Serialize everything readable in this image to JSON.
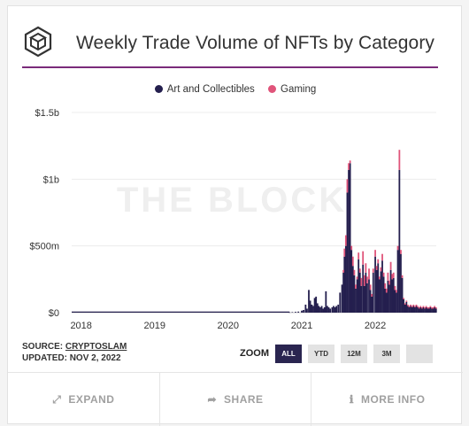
{
  "header": {
    "title": "Weekly Trade Volume of NFTs by Category"
  },
  "watermark": "THE BLOCK",
  "chart_data": {
    "type": "bar",
    "stacked": true,
    "title": "Weekly Trade Volume of NFTs by Category",
    "xlabel": "",
    "ylabel": "",
    "x_tick_labels": [
      "2018",
      "2019",
      "2020",
      "2021",
      "2022"
    ],
    "y_tick_labels": [
      "$0",
      "$500m",
      "$1b",
      "$1.5b"
    ],
    "y_ticks": [
      0,
      0.5,
      1.0,
      1.5
    ],
    "ylim": [
      0,
      1.5
    ],
    "y_unit": "billions USD",
    "grid": true,
    "legend_position": "top-center",
    "period": {
      "start": "2017-11",
      "end": "2022-11"
    },
    "series": [
      {
        "name": "Art and Collectibles",
        "color": "#241f4e",
        "points": [
          [
            "2020-11-01",
            0.003
          ],
          [
            "2020-11-15",
            0.004
          ],
          [
            "2020-12-01",
            0.006
          ],
          [
            "2020-12-15",
            0.008
          ],
          [
            "2021-01-01",
            0.015
          ],
          [
            "2021-01-10",
            0.02
          ],
          [
            "2021-01-20",
            0.06
          ],
          [
            "2021-01-27",
            0.03
          ],
          [
            "2021-02-05",
            0.17
          ],
          [
            "2021-02-12",
            0.09
          ],
          [
            "2021-02-20",
            0.06
          ],
          [
            "2021-02-27",
            0.05
          ],
          [
            "2021-03-06",
            0.11
          ],
          [
            "2021-03-13",
            0.12
          ],
          [
            "2021-03-20",
            0.07
          ],
          [
            "2021-03-27",
            0.05
          ],
          [
            "2021-04-03",
            0.04
          ],
          [
            "2021-04-10",
            0.05
          ],
          [
            "2021-04-17",
            0.03
          ],
          [
            "2021-04-24",
            0.04
          ],
          [
            "2021-05-01",
            0.16
          ],
          [
            "2021-05-08",
            0.05
          ],
          [
            "2021-05-15",
            0.04
          ],
          [
            "2021-05-22",
            0.03
          ],
          [
            "2021-06-01",
            0.04
          ],
          [
            "2021-06-08",
            0.05
          ],
          [
            "2021-06-15",
            0.04
          ],
          [
            "2021-06-22",
            0.05
          ],
          [
            "2021-07-01",
            0.06
          ],
          [
            "2021-07-10",
            0.15
          ],
          [
            "2021-07-20",
            0.21
          ],
          [
            "2021-07-27",
            0.3
          ],
          [
            "2021-08-01",
            0.42
          ],
          [
            "2021-08-08",
            0.5
          ],
          [
            "2021-08-15",
            0.9
          ],
          [
            "2021-08-22",
            1.07
          ],
          [
            "2021-08-29",
            1.12
          ],
          [
            "2021-09-05",
            0.47
          ],
          [
            "2021-09-12",
            0.35
          ],
          [
            "2021-09-19",
            0.28
          ],
          [
            "2021-09-26",
            0.18
          ],
          [
            "2021-10-03",
            0.25
          ],
          [
            "2021-10-10",
            0.4
          ],
          [
            "2021-10-17",
            0.3
          ],
          [
            "2021-10-24",
            0.2
          ],
          [
            "2021-11-01",
            0.36
          ],
          [
            "2021-11-08",
            0.2
          ],
          [
            "2021-11-15",
            0.3
          ],
          [
            "2021-11-22",
            0.22
          ],
          [
            "2021-12-01",
            0.25
          ],
          [
            "2021-12-08",
            0.17
          ],
          [
            "2021-12-15",
            0.12
          ],
          [
            "2021-12-22",
            0.3
          ],
          [
            "2022-01-01",
            0.42
          ],
          [
            "2022-01-08",
            0.32
          ],
          [
            "2022-01-15",
            0.37
          ],
          [
            "2022-01-22",
            0.25
          ],
          [
            "2022-01-29",
            0.31
          ],
          [
            "2022-02-05",
            0.39
          ],
          [
            "2022-02-12",
            0.27
          ],
          [
            "2022-02-19",
            0.18
          ],
          [
            "2022-02-26",
            0.15
          ],
          [
            "2022-03-05",
            0.24
          ],
          [
            "2022-03-12",
            0.21
          ],
          [
            "2022-03-19",
            0.32
          ],
          [
            "2022-03-26",
            0.25
          ],
          [
            "2022-04-02",
            0.26
          ],
          [
            "2022-04-09",
            0.17
          ],
          [
            "2022-04-16",
            0.15
          ],
          [
            "2022-04-23",
            0.47
          ],
          [
            "2022-05-01",
            1.07
          ],
          [
            "2022-05-08",
            0.44
          ],
          [
            "2022-05-15",
            0.26
          ],
          [
            "2022-05-22",
            0.1
          ],
          [
            "2022-05-29",
            0.06
          ],
          [
            "2022-06-05",
            0.08
          ],
          [
            "2022-06-12",
            0.05
          ],
          [
            "2022-06-19",
            0.04
          ],
          [
            "2022-06-26",
            0.05
          ],
          [
            "2022-07-03",
            0.04
          ],
          [
            "2022-07-10",
            0.05
          ],
          [
            "2022-07-17",
            0.04
          ],
          [
            "2022-07-24",
            0.05
          ],
          [
            "2022-07-31",
            0.04
          ],
          [
            "2022-08-07",
            0.03
          ],
          [
            "2022-08-14",
            0.04
          ],
          [
            "2022-08-21",
            0.03
          ],
          [
            "2022-08-28",
            0.04
          ],
          [
            "2022-09-04",
            0.03
          ],
          [
            "2022-09-11",
            0.04
          ],
          [
            "2022-09-18",
            0.03
          ],
          [
            "2022-09-25",
            0.03
          ],
          [
            "2022-10-02",
            0.04
          ],
          [
            "2022-10-09",
            0.03
          ],
          [
            "2022-10-16",
            0.03
          ],
          [
            "2022-10-23",
            0.04
          ],
          [
            "2022-10-30",
            0.03
          ]
        ]
      },
      {
        "name": "Gaming",
        "color": "#e0547a",
        "points": [
          [
            "2021-07-27",
            0.02
          ],
          [
            "2021-08-01",
            0.06
          ],
          [
            "2021-08-08",
            0.08
          ],
          [
            "2021-08-15",
            0.1
          ],
          [
            "2021-08-22",
            0.05
          ],
          [
            "2021-08-29",
            0.02
          ],
          [
            "2021-09-05",
            0.03
          ],
          [
            "2021-09-12",
            0.07
          ],
          [
            "2021-09-19",
            0.04
          ],
          [
            "2021-09-26",
            0.03
          ],
          [
            "2021-10-03",
            0.02
          ],
          [
            "2021-10-10",
            0.05
          ],
          [
            "2021-10-17",
            0.03
          ],
          [
            "2021-10-24",
            0.06
          ],
          [
            "2021-11-01",
            0.1
          ],
          [
            "2021-11-08",
            0.08
          ],
          [
            "2021-11-15",
            0.07
          ],
          [
            "2021-11-22",
            0.05
          ],
          [
            "2021-12-01",
            0.08
          ],
          [
            "2021-12-08",
            0.04
          ],
          [
            "2021-12-15",
            0.02
          ],
          [
            "2021-12-22",
            0.03
          ],
          [
            "2022-01-01",
            0.05
          ],
          [
            "2022-01-08",
            0.03
          ],
          [
            "2022-01-15",
            0.03
          ],
          [
            "2022-01-22",
            0.02
          ],
          [
            "2022-01-29",
            0.03
          ],
          [
            "2022-02-05",
            0.05
          ],
          [
            "2022-02-12",
            0.03
          ],
          [
            "2022-02-19",
            0.04
          ],
          [
            "2022-02-26",
            0.03
          ],
          [
            "2022-03-05",
            0.06
          ],
          [
            "2022-03-12",
            0.03
          ],
          [
            "2022-03-19",
            0.06
          ],
          [
            "2022-03-26",
            0.04
          ],
          [
            "2022-04-02",
            0.04
          ],
          [
            "2022-04-09",
            0.03
          ],
          [
            "2022-04-16",
            0.02
          ],
          [
            "2022-04-23",
            0.03
          ],
          [
            "2022-05-01",
            0.15
          ],
          [
            "2022-05-08",
            0.03
          ],
          [
            "2022-05-15",
            0.02
          ],
          [
            "2022-05-22",
            0.01
          ],
          [
            "2022-05-29",
            0.01
          ],
          [
            "2022-06-05",
            0.01
          ],
          [
            "2022-06-12",
            0.01
          ],
          [
            "2022-06-19",
            0.01
          ],
          [
            "2022-06-26",
            0.01
          ],
          [
            "2022-07-03",
            0.01
          ],
          [
            "2022-07-10",
            0.01
          ],
          [
            "2022-07-17",
            0.01
          ],
          [
            "2022-07-24",
            0.01
          ],
          [
            "2022-07-31",
            0.01
          ],
          [
            "2022-08-07",
            0.01
          ],
          [
            "2022-08-14",
            0.01
          ],
          [
            "2022-08-21",
            0.01
          ],
          [
            "2022-08-28",
            0.01
          ],
          [
            "2022-09-04",
            0.01
          ],
          [
            "2022-09-11",
            0.01
          ],
          [
            "2022-09-18",
            0.01
          ],
          [
            "2022-09-25",
            0.01
          ],
          [
            "2022-10-02",
            0.01
          ],
          [
            "2022-10-09",
            0.01
          ],
          [
            "2022-10-16",
            0.01
          ],
          [
            "2022-10-23",
            0.01
          ],
          [
            "2022-10-30",
            0.01
          ]
        ]
      }
    ]
  },
  "footer": {
    "source_label": "SOURCE:",
    "source_name": "CRYPTOSLAM",
    "updated": "UPDATED: NOV 2, 2022"
  },
  "zoom": {
    "label": "ZOOM",
    "buttons": [
      "ALL",
      "YTD",
      "12M",
      "3M",
      ""
    ]
  },
  "actions": {
    "expand": "EXPAND",
    "share": "SHARE",
    "more_info": "MORE INFO"
  },
  "icons": {
    "logo": "cube-logo-icon",
    "expand": "expand-arrows-icon",
    "share": "share-arrow-icon",
    "more_info": "info-circle-icon"
  }
}
